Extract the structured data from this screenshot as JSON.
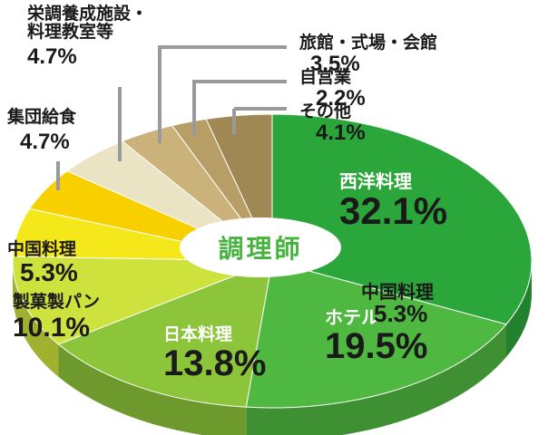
{
  "chart_data": {
    "type": "pie",
    "title": "調理師",
    "slices": [
      {
        "name": "西洋料理",
        "value": "32.1%",
        "pct": 32.1,
        "color": "#2aa63a"
      },
      {
        "name": "ホテル",
        "value": "19.5%",
        "pct": 19.5,
        "color": "#4fb840"
      },
      {
        "name": "日本料理",
        "value": "13.8%",
        "pct": 13.8,
        "color": "#8cc43a"
      },
      {
        "name": "製菓製パン",
        "value": "10.1%",
        "pct": 10.1,
        "color": "#cde23c"
      },
      {
        "name": "中国料理",
        "value": "5.3%",
        "pct": 5.3,
        "color": "#f5e81a"
      },
      {
        "name": "集団給食",
        "value": "4.7%",
        "pct": 4.7,
        "color": "#f8d000"
      },
      {
        "name": "栄調養成施設・料理教室等",
        "value": "4.7%",
        "pct": 4.7,
        "color": "#ebe4c4"
      },
      {
        "name": "旅館・式場・会館",
        "value": "3.5%",
        "pct": 3.5,
        "color": "#cbb27a"
      },
      {
        "name": "自営業",
        "value": "2.2%",
        "pct": 2.2,
        "color": "#b69e66"
      },
      {
        "name": "その他",
        "value": "4.1%",
        "pct": 4.1,
        "color": "#a08855"
      }
    ],
    "overlay_label": {
      "name": "中国料理",
      "value": "5.3%"
    }
  },
  "labels": {
    "seiyo_name": "西洋料理",
    "seiyo_pct": "32.1%",
    "hotel_name": "ホテル",
    "hotel_pct": "19.5%",
    "nihon_name": "日本料理",
    "nihon_pct": "13.8%",
    "seika_name": "製菓製パン",
    "seika_pct": "10.1%",
    "chugoku_name": "中国料理",
    "chugoku_pct": "5.3%",
    "shudan_name": "集団給食",
    "shudan_pct": "4.7%",
    "eicho_line1": "栄調養成施設・",
    "eicho_line2": "料理教室等",
    "eicho_pct": "4.7%",
    "ryokan_name": "旅館・式場・会館",
    "ryokan_pct": "3.5%",
    "jiei_name": "自営業",
    "jiei_pct": "2.2%",
    "sonota_name": "その他",
    "sonota_pct": "4.1%",
    "overlay_name": "中国料理",
    "overlay_pct": "5.3%"
  },
  "center_title": "調理師"
}
